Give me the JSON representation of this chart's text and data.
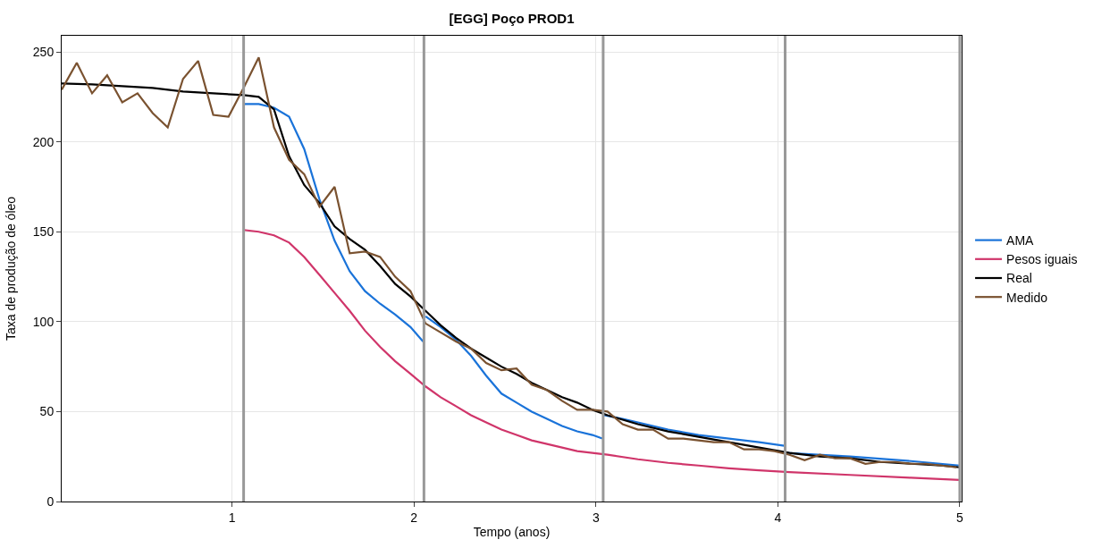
{
  "chart_data": {
    "type": "line",
    "title": "[EGG] Poço PROD1",
    "xlabel": "Tempo (anos)",
    "ylabel": "Taxa de produção de óleo",
    "xlim": [
      0.064,
      5.01
    ],
    "xticks": [
      1,
      2,
      3,
      4,
      5
    ],
    "ylim": [
      0,
      259
    ],
    "yticks": [
      0,
      50,
      100,
      150,
      200,
      250
    ],
    "grid": true,
    "legend": "right",
    "line_style": "solid",
    "marker": "none",
    "series": [
      {
        "name": "AMA",
        "color": "#1a73d9",
        "x": [
          1.064,
          1.147,
          1.231,
          1.314,
          1.397,
          1.481,
          1.564,
          1.647,
          1.731,
          1.814,
          1.897,
          1.981,
          2.05,
          null,
          2.064,
          2.147,
          2.231,
          2.314,
          2.397,
          2.481,
          2.564,
          2.647,
          2.731,
          2.814,
          2.897,
          2.981,
          3.035,
          null,
          3.045,
          3.147,
          3.231,
          3.397,
          3.564,
          3.731,
          3.897,
          4.035,
          null,
          4.045,
          4.397,
          4.731,
          5.0
        ],
        "values": [
          221,
          221,
          219,
          214,
          196,
          168,
          145,
          128,
          117,
          110,
          104,
          97,
          89,
          null,
          103,
          97,
          90,
          81,
          70,
          60,
          55,
          50,
          46,
          42,
          39,
          37,
          35,
          null,
          48,
          46,
          44,
          40,
          37,
          35,
          33,
          31,
          null,
          27,
          25,
          22.5,
          20
        ]
      },
      {
        "name": "Pesos iguais",
        "color": "#d0356a",
        "x": [
          1.064,
          1.147,
          1.231,
          1.314,
          1.397,
          1.481,
          1.564,
          1.647,
          1.731,
          1.814,
          1.897,
          1.981,
          2.064,
          2.147,
          2.231,
          2.314,
          2.397,
          2.481,
          2.564,
          2.647,
          2.731,
          2.897,
          3.064,
          3.231,
          3.397,
          3.564,
          3.731,
          3.897,
          4.064,
          4.397,
          4.731,
          5.0
        ],
        "values": [
          151,
          150,
          148,
          144,
          136,
          126,
          116,
          106,
          95,
          86,
          78,
          71,
          64,
          58,
          53,
          48,
          44,
          40,
          37,
          34,
          32,
          28,
          26,
          23.5,
          21.5,
          20,
          18.5,
          17.3,
          16.3,
          14.8,
          13.2,
          12
        ]
      },
      {
        "name": "Real",
        "color": "#000000",
        "x": [
          0.064,
          0.231,
          0.397,
          0.564,
          0.731,
          0.897,
          1.064,
          1.147,
          1.231,
          1.314,
          1.397,
          1.481,
          1.564,
          1.647,
          1.731,
          1.814,
          1.897,
          1.981,
          2.064,
          2.147,
          2.231,
          2.314,
          2.397,
          2.481,
          2.564,
          2.647,
          2.731,
          2.814,
          2.897,
          2.981,
          3.064,
          3.231,
          3.397,
          3.564,
          3.731,
          3.897,
          4.064,
          4.231,
          4.397,
          4.564,
          4.731,
          4.897,
          5.0
        ],
        "values": [
          232.5,
          232,
          231,
          230,
          228,
          227,
          226,
          225,
          218,
          192,
          176,
          166,
          153,
          146,
          140,
          131,
          121,
          114,
          106,
          98,
          91,
          85,
          80,
          75,
          71,
          66,
          62,
          58,
          55,
          51,
          48,
          43,
          39,
          36,
          33,
          30,
          27,
          25,
          24,
          22,
          21,
          20,
          19
        ]
      },
      {
        "name": "Medido",
        "color": "#7a5230",
        "x": [
          0.064,
          0.147,
          0.231,
          0.314,
          0.397,
          0.481,
          0.564,
          0.647,
          0.731,
          0.814,
          0.897,
          0.981,
          1.064,
          1.147,
          1.231,
          1.314,
          1.397,
          1.481,
          1.564,
          1.647,
          1.731,
          1.814,
          1.897,
          1.981,
          2.064,
          2.147,
          2.231,
          2.314,
          2.397,
          2.481,
          2.564,
          2.647,
          2.731,
          2.814,
          2.897,
          2.981,
          3.064,
          3.147,
          3.231,
          3.314,
          3.397,
          3.481,
          3.564,
          3.647,
          3.731,
          3.814,
          3.897,
          3.981,
          4.064,
          4.147,
          4.231,
          4.314,
          4.397,
          4.481,
          4.564,
          4.647,
          4.731,
          4.814,
          4.897,
          4.981
        ],
        "values": [
          229,
          244,
          227,
          237,
          222,
          227,
          216,
          208,
          235,
          245,
          215,
          214,
          230,
          247,
          208,
          190,
          182,
          164,
          175,
          138,
          139,
          136,
          125,
          117,
          99,
          94,
          89,
          85,
          77,
          73,
          74,
          65,
          62,
          56,
          51,
          51,
          50,
          43,
          40,
          40,
          35,
          35,
          34,
          33,
          33,
          29,
          29,
          28,
          26,
          23,
          26,
          24,
          24,
          21,
          22,
          22,
          21,
          21,
          20,
          19
        ]
      }
    ],
    "ref_lines": [
      {
        "axis": "x",
        "value": 1.064,
        "color": "#999999"
      },
      {
        "axis": "x",
        "value": 2.055,
        "color": "#999999"
      },
      {
        "axis": "x",
        "value": 3.04,
        "color": "#999999"
      },
      {
        "axis": "x",
        "value": 4.04,
        "color": "#999999"
      },
      {
        "axis": "x",
        "value": 5.0,
        "color": "#999999"
      }
    ]
  }
}
